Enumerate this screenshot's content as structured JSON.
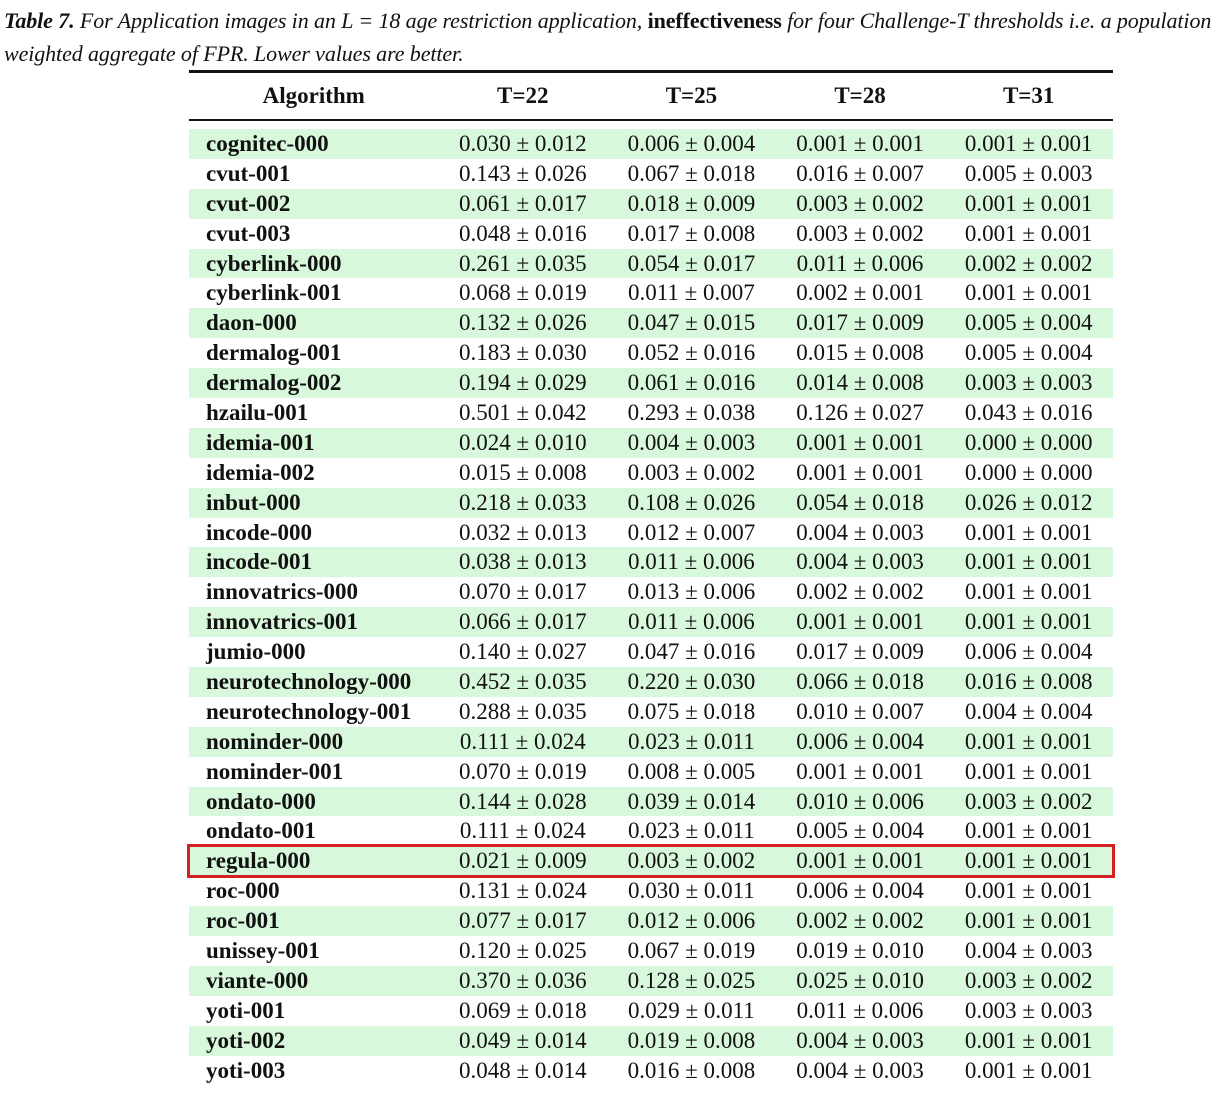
{
  "caption": {
    "label": "Table 7.",
    "text_before": " For Application images in an L = 18 age restriction application, ",
    "bold": "ineffectiveness",
    "text_after": " for four Challenge-T thresholds i.e. a population weighted aggregate of FPR. Lower values are better."
  },
  "table": {
    "columns": [
      "Algorithm",
      "T=22",
      "T=25",
      "T=28",
      "T=31"
    ],
    "highlighted_row": "regula-000",
    "highlight_color": "#d42020",
    "stripe_color": "#d8f8dc",
    "rows": [
      [
        "cognitec-000",
        "0.030 ± 0.012",
        "0.006 ± 0.004",
        "0.001 ± 0.001",
        "0.001 ± 0.001"
      ],
      [
        "cvut-001",
        "0.143 ± 0.026",
        "0.067 ± 0.018",
        "0.016 ± 0.007",
        "0.005 ± 0.003"
      ],
      [
        "cvut-002",
        "0.061 ± 0.017",
        "0.018 ± 0.009",
        "0.003 ± 0.002",
        "0.001 ± 0.001"
      ],
      [
        "cvut-003",
        "0.048 ± 0.016",
        "0.017 ± 0.008",
        "0.003 ± 0.002",
        "0.001 ± 0.001"
      ],
      [
        "cyberlink-000",
        "0.261 ± 0.035",
        "0.054 ± 0.017",
        "0.011 ± 0.006",
        "0.002 ± 0.002"
      ],
      [
        "cyberlink-001",
        "0.068 ± 0.019",
        "0.011 ± 0.007",
        "0.002 ± 0.001",
        "0.001 ± 0.001"
      ],
      [
        "daon-000",
        "0.132 ± 0.026",
        "0.047 ± 0.015",
        "0.017 ± 0.009",
        "0.005 ± 0.004"
      ],
      [
        "dermalog-001",
        "0.183 ± 0.030",
        "0.052 ± 0.016",
        "0.015 ± 0.008",
        "0.005 ± 0.004"
      ],
      [
        "dermalog-002",
        "0.194 ± 0.029",
        "0.061 ± 0.016",
        "0.014 ± 0.008",
        "0.003 ± 0.003"
      ],
      [
        "hzailu-001",
        "0.501 ± 0.042",
        "0.293 ± 0.038",
        "0.126 ± 0.027",
        "0.043 ± 0.016"
      ],
      [
        "idemia-001",
        "0.024 ± 0.010",
        "0.004 ± 0.003",
        "0.001 ± 0.001",
        "0.000 ± 0.000"
      ],
      [
        "idemia-002",
        "0.015 ± 0.008",
        "0.003 ± 0.002",
        "0.001 ± 0.001",
        "0.000 ± 0.000"
      ],
      [
        "inbut-000",
        "0.218 ± 0.033",
        "0.108 ± 0.026",
        "0.054 ± 0.018",
        "0.026 ± 0.012"
      ],
      [
        "incode-000",
        "0.032 ± 0.013",
        "0.012 ± 0.007",
        "0.004 ± 0.003",
        "0.001 ± 0.001"
      ],
      [
        "incode-001",
        "0.038 ± 0.013",
        "0.011 ± 0.006",
        "0.004 ± 0.003",
        "0.001 ± 0.001"
      ],
      [
        "innovatrics-000",
        "0.070 ± 0.017",
        "0.013 ± 0.006",
        "0.002 ± 0.002",
        "0.001 ± 0.001"
      ],
      [
        "innovatrics-001",
        "0.066 ± 0.017",
        "0.011 ± 0.006",
        "0.001 ± 0.001",
        "0.001 ± 0.001"
      ],
      [
        "jumio-000",
        "0.140 ± 0.027",
        "0.047 ± 0.016",
        "0.017 ± 0.009",
        "0.006 ± 0.004"
      ],
      [
        "neurotechnology-000",
        "0.452 ± 0.035",
        "0.220 ± 0.030",
        "0.066 ± 0.018",
        "0.016 ± 0.008"
      ],
      [
        "neurotechnology-001",
        "0.288 ± 0.035",
        "0.075 ± 0.018",
        "0.010 ± 0.007",
        "0.004 ± 0.004"
      ],
      [
        "nominder-000",
        "0.111 ± 0.024",
        "0.023 ± 0.011",
        "0.006 ± 0.004",
        "0.001 ± 0.001"
      ],
      [
        "nominder-001",
        "0.070 ± 0.019",
        "0.008 ± 0.005",
        "0.001 ± 0.001",
        "0.001 ± 0.001"
      ],
      [
        "ondato-000",
        "0.144 ± 0.028",
        "0.039 ± 0.014",
        "0.010 ± 0.006",
        "0.003 ± 0.002"
      ],
      [
        "ondato-001",
        "0.111 ± 0.024",
        "0.023 ± 0.011",
        "0.005 ± 0.004",
        "0.001 ± 0.001"
      ],
      [
        "regula-000",
        "0.021 ± 0.009",
        "0.003 ± 0.002",
        "0.001 ± 0.001",
        "0.001 ± 0.001"
      ],
      [
        "roc-000",
        "0.131 ± 0.024",
        "0.030 ± 0.011",
        "0.006 ± 0.004",
        "0.001 ± 0.001"
      ],
      [
        "roc-001",
        "0.077 ± 0.017",
        "0.012 ± 0.006",
        "0.002 ± 0.002",
        "0.001 ± 0.001"
      ],
      [
        "unissey-001",
        "0.120 ± 0.025",
        "0.067 ± 0.019",
        "0.019 ± 0.010",
        "0.004 ± 0.003"
      ],
      [
        "viante-000",
        "0.370 ± 0.036",
        "0.128 ± 0.025",
        "0.025 ± 0.010",
        "0.003 ± 0.002"
      ],
      [
        "yoti-001",
        "0.069 ± 0.018",
        "0.029 ± 0.011",
        "0.011 ± 0.006",
        "0.003 ± 0.003"
      ],
      [
        "yoti-002",
        "0.049 ± 0.014",
        "0.019 ± 0.008",
        "0.004 ± 0.003",
        "0.001 ± 0.001"
      ],
      [
        "yoti-003",
        "0.048 ± 0.014",
        "0.016 ± 0.008",
        "0.004 ± 0.003",
        "0.001 ± 0.001"
      ]
    ]
  }
}
